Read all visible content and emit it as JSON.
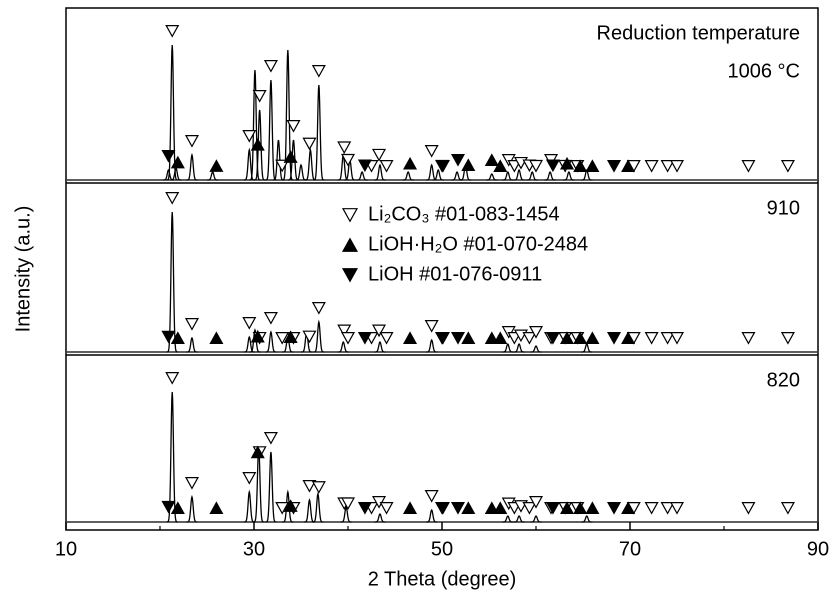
{
  "chart_data": {
    "type": "xrd",
    "annotation": "Reduction temperature",
    "xlabel": "2 Theta (degree)",
    "ylabel": "Intensity (a.u.)",
    "xlim": [
      10,
      90
    ],
    "xticks": [
      10,
      30,
      50,
      70,
      90
    ],
    "color": "#000000",
    "panels": [
      {
        "label": "1006 °C",
        "x": [
          20.9,
          21.3,
          21.7,
          23.4,
          25.6,
          29.5,
          30.1,
          30.6,
          31.8,
          32.6,
          33.6,
          34.2,
          35.0,
          36.0,
          36.9,
          39.5,
          40.2,
          41.5,
          43.4,
          46.4,
          48.9,
          49.6,
          51.6,
          52.5,
          55.3,
          57.0,
          58.2,
          59.6,
          61.5,
          63.5,
          65.4
        ],
        "values": [
          10,
          135,
          12,
          25,
          8,
          30,
          110,
          70,
          100,
          40,
          130,
          40,
          15,
          30,
          95,
          25,
          20,
          8,
          15,
          8,
          15,
          10,
          8,
          15,
          6,
          8,
          10,
          8,
          8,
          8,
          10
        ]
      },
      {
        "label": "910",
        "x": [
          21.3,
          23.4,
          29.5,
          30.1,
          31.8,
          33.6,
          35.6,
          36.9,
          39.5,
          43.4,
          48.9,
          57.0,
          58.2,
          60.0,
          65.4
        ],
        "values": [
          140,
          14,
          15,
          22,
          20,
          15,
          20,
          30,
          10,
          10,
          12,
          8,
          8,
          6,
          8
        ]
      },
      {
        "label": "820",
        "x": [
          21.3,
          23.4,
          29.5,
          30.5,
          31.8,
          33.6,
          35.9,
          36.8,
          39.8,
          43.4,
          48.9,
          57.0,
          58.2,
          60.0,
          65.4
        ],
        "values": [
          130,
          25,
          30,
          75,
          70,
          30,
          22,
          28,
          15,
          8,
          12,
          6,
          6,
          6,
          6
        ]
      }
    ],
    "phases": [
      {
        "name": "Li₂CO₃ #01-083-1454",
        "marker": "open-down",
        "x": [
          21.3,
          23.4,
          29.5,
          30.6,
          31.8,
          33.0,
          34.2,
          35.9,
          36.9,
          39.6,
          40.0,
          42.5,
          43.3,
          44.1,
          48.9,
          50.0,
          57.1,
          57.7,
          58.4,
          59.3,
          60.0,
          61.6,
          63.1,
          64.4,
          70.4,
          72.3,
          74.0,
          75.0,
          82.6,
          86.8
        ]
      },
      {
        "name": "LiOH·H₂O #01-070-2484",
        "marker": "filled-up",
        "x": [
          21.9,
          26.0,
          30.4,
          33.9,
          46.6,
          52.8,
          55.3,
          56.2,
          63.3,
          64.7,
          66.0,
          69.8
        ]
      },
      {
        "name": "LiOH #01-076-0911",
        "marker": "filled-down",
        "x": [
          20.9,
          41.8,
          50.1,
          51.7,
          61.8,
          68.3
        ]
      }
    ]
  }
}
